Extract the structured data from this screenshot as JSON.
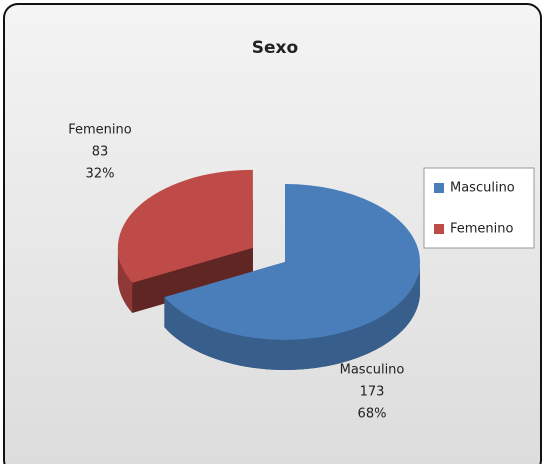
{
  "chart_data": {
    "type": "pie",
    "title": "Sexo",
    "categories": [
      "Masculino",
      "Femenino"
    ],
    "values": [
      173,
      83
    ],
    "percent_labels": [
      "68%",
      "32%"
    ],
    "colors": [
      "#4a7ebb",
      "#be4b48"
    ],
    "legend": "right"
  }
}
